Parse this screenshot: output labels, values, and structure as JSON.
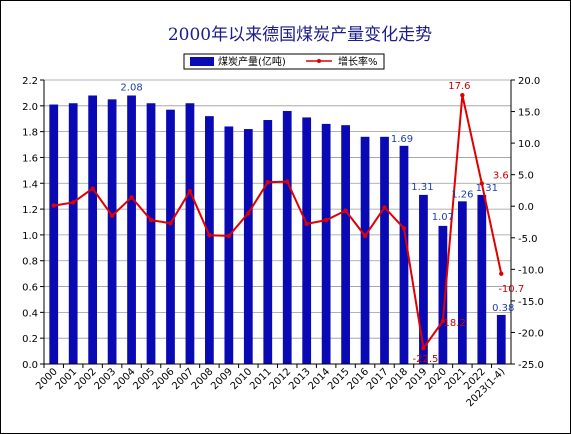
{
  "chart_data": {
    "type": "bar",
    "title": "2000年以来德国煤炭产量变化走势",
    "categories": [
      "2000",
      "2001",
      "2002",
      "2003",
      "2004",
      "2005",
      "2006",
      "2007",
      "2008",
      "2009",
      "2010",
      "2011",
      "2012",
      "2013",
      "2014",
      "2015",
      "2016",
      "2017",
      "2018",
      "2019",
      "2020",
      "2021",
      "2022",
      "2023(1-4)"
    ],
    "series": [
      {
        "name": "煤炭产量(亿吨)",
        "type": "bar",
        "axis": "left",
        "color": "#0a0ab4",
        "values": [
          2.01,
          2.02,
          2.08,
          2.05,
          2.08,
          2.02,
          1.97,
          2.02,
          1.92,
          1.84,
          1.82,
          1.89,
          1.96,
          1.91,
          1.86,
          1.85,
          1.76,
          1.76,
          1.69,
          1.31,
          1.07,
          1.26,
          1.31,
          0.38
        ],
        "labeled": {
          "4": "2.08",
          "18": "1.69",
          "19": "1.31",
          "20": "1.07",
          "21": "1.26",
          "22": "1.31",
          "23": "0.38"
        }
      },
      {
        "name": "增长率%",
        "type": "line",
        "axis": "right",
        "color": "#e00000",
        "values": [
          0.1,
          0.6,
          2.8,
          -1.5,
          1.4,
          -2.2,
          -2.7,
          2.4,
          -4.6,
          -4.7,
          -1.1,
          3.8,
          3.9,
          -2.8,
          -2.2,
          -0.7,
          -4.7,
          -0.2,
          -3.5,
          -22.5,
          -18.2,
          17.6,
          3.6,
          -10.7
        ],
        "labeled": {
          "19": "-22.5",
          "20": "-18.2",
          "21": "17.6",
          "22": "3.6",
          "23": "-10.7"
        }
      }
    ],
    "ylim_left": [
      0,
      2.2
    ],
    "yticks_left": [
      "0.0",
      "0.2",
      "0.4",
      "0.6",
      "0.8",
      "1.0",
      "1.2",
      "1.4",
      "1.6",
      "1.8",
      "2.0",
      "2.2"
    ],
    "ylim_right": [
      -25,
      20
    ],
    "yticks_right": [
      "-25.0",
      "-20.0",
      "-15.0",
      "-10.0",
      "-5.0",
      "0.0",
      "5.0",
      "10.0",
      "15.0",
      "20.0"
    ],
    "grid": true,
    "legend_position": "top-center"
  }
}
